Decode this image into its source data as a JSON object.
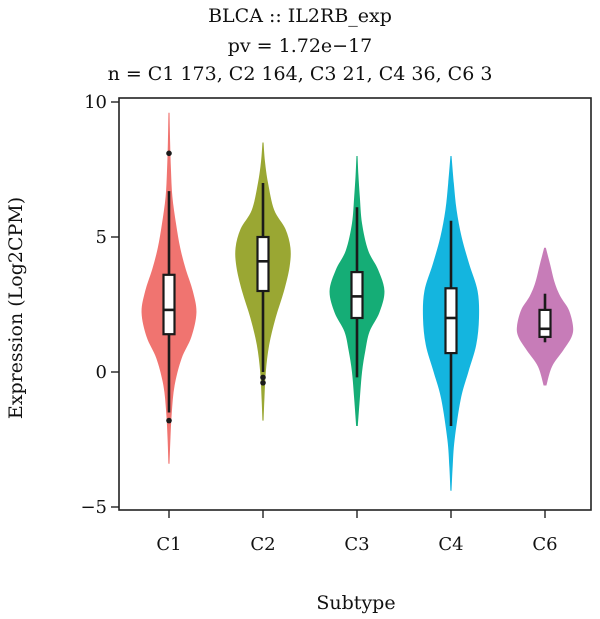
{
  "chart_data": {
    "type": "violin",
    "title": "BLCA :: IL2RB_exp",
    "subtitle_pvalue": "pv = 1.72e−17",
    "subtitle_n": "n = C1 173, C2 164, C3 21, C4 36, C6 3",
    "xlabel": "Subtype",
    "ylabel": "Expression (Log2CPM)",
    "ylim": [
      -5,
      10
    ],
    "yticks": [
      -5,
      0,
      5,
      10
    ],
    "ytick_labels": [
      "−5",
      "0",
      "5",
      "10"
    ],
    "grid": false,
    "legend": "none",
    "categories": [
      "C1",
      "C2",
      "C3",
      "C4",
      "C6"
    ],
    "series": [
      {
        "category": "C1",
        "color": "#F07470",
        "min": -3.4,
        "max": 9.6,
        "box": {
          "q1": 1.4,
          "median": 2.3,
          "q3": 3.6,
          "whisker_low": -1.5,
          "whisker_high": 6.7
        },
        "outliers": [
          8.1,
          -1.8
        ],
        "density": [
          [
            -3.4,
            0.02
          ],
          [
            -2.5,
            0.05
          ],
          [
            -1.5,
            0.1
          ],
          [
            -0.5,
            0.2
          ],
          [
            0.5,
            0.45
          ],
          [
            1.3,
            0.8
          ],
          [
            2.2,
            0.98
          ],
          [
            3.0,
            0.85
          ],
          [
            3.8,
            0.6
          ],
          [
            4.6,
            0.4
          ],
          [
            5.5,
            0.25
          ],
          [
            6.5,
            0.12
          ],
          [
            7.5,
            0.07
          ],
          [
            8.5,
            0.04
          ],
          [
            9.6,
            0.02
          ]
        ]
      },
      {
        "category": "C2",
        "color": "#9AA733",
        "min": -1.8,
        "max": 8.5,
        "box": {
          "q1": 3.0,
          "median": 4.1,
          "q3": 5.0,
          "whisker_low": 0.0,
          "whisker_high": 7.0
        },
        "outliers": [
          -0.2,
          -0.4
        ],
        "density": [
          [
            -1.8,
            0.02
          ],
          [
            -1.0,
            0.05
          ],
          [
            0.0,
            0.1
          ],
          [
            1.0,
            0.22
          ],
          [
            2.0,
            0.45
          ],
          [
            3.0,
            0.75
          ],
          [
            3.9,
            0.95
          ],
          [
            4.6,
            0.98
          ],
          [
            5.3,
            0.8
          ],
          [
            6.0,
            0.4
          ],
          [
            7.0,
            0.18
          ],
          [
            7.8,
            0.07
          ],
          [
            8.5,
            0.02
          ]
        ]
      },
      {
        "category": "C3",
        "color": "#15AD76",
        "min": -2.0,
        "max": 8.0,
        "box": {
          "q1": 2.0,
          "median": 2.8,
          "q3": 3.7,
          "whisker_low": -0.2,
          "whisker_high": 6.1
        },
        "outliers": [],
        "density": [
          [
            -2.0,
            0.03
          ],
          [
            -1.0,
            0.1
          ],
          [
            0.0,
            0.18
          ],
          [
            0.8,
            0.3
          ],
          [
            1.5,
            0.45
          ],
          [
            2.2,
            0.8
          ],
          [
            3.0,
            0.98
          ],
          [
            3.8,
            0.75
          ],
          [
            4.5,
            0.4
          ],
          [
            5.5,
            0.18
          ],
          [
            6.5,
            0.1
          ],
          [
            7.3,
            0.05
          ],
          [
            8.0,
            0.02
          ]
        ]
      },
      {
        "category": "C4",
        "color": "#14B5DF",
        "min": -4.4,
        "max": 8.0,
        "box": {
          "q1": 0.7,
          "median": 2.0,
          "q3": 3.1,
          "whisker_low": -2.0,
          "whisker_high": 5.6
        },
        "outliers": [],
        "density": [
          [
            -4.4,
            0.02
          ],
          [
            -3.5,
            0.06
          ],
          [
            -2.5,
            0.13
          ],
          [
            -1.0,
            0.35
          ],
          [
            0.0,
            0.62
          ],
          [
            1.0,
            0.9
          ],
          [
            2.0,
            1.0
          ],
          [
            3.0,
            0.95
          ],
          [
            4.0,
            0.65
          ],
          [
            5.0,
            0.38
          ],
          [
            6.0,
            0.2
          ],
          [
            7.0,
            0.1
          ],
          [
            8.0,
            0.02
          ]
        ]
      },
      {
        "category": "C6",
        "color": "#C77CB8",
        "min": -0.5,
        "max": 4.6,
        "box": {
          "q1": 1.3,
          "median": 1.6,
          "q3": 2.3,
          "whisker_low": 1.1,
          "whisker_high": 2.9
        },
        "outliers": [],
        "density": [
          [
            -0.5,
            0.05
          ],
          [
            0.2,
            0.25
          ],
          [
            0.8,
            0.65
          ],
          [
            1.3,
            0.95
          ],
          [
            1.7,
            1.0
          ],
          [
            2.3,
            0.85
          ],
          [
            2.8,
            0.55
          ],
          [
            3.3,
            0.35
          ],
          [
            4.0,
            0.18
          ],
          [
            4.6,
            0.03
          ]
        ]
      }
    ]
  }
}
